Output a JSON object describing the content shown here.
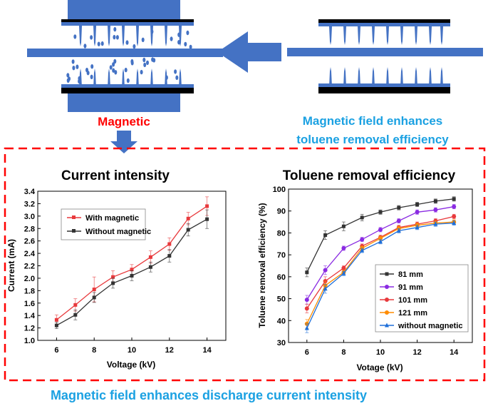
{
  "diagram": {
    "magnetic_label": "Magnetic",
    "caption_top_line1": "Magnetic field enhances",
    "caption_top_line2": "toluene removal efficiency",
    "caption_bottom": "Magnetic field enhances discharge current intensity",
    "colors": {
      "electrode_blue": "#4472C4",
      "magnetic_red": "#FF0000",
      "caption_cyan": "#1BA1E2",
      "frame_red": "#FF0000"
    }
  },
  "chart_data": [
    {
      "type": "line",
      "title": "Current intensity",
      "xlabel": "Voltage (kV)",
      "ylabel": "Current (mA)",
      "xlim": [
        5,
        15
      ],
      "ylim": [
        1.0,
        3.4
      ],
      "xticks": [
        "6",
        "8",
        "10",
        "12",
        "14"
      ],
      "yticks": [
        "1.0",
        "1.2",
        "1.4",
        "1.6",
        "1.8",
        "2.0",
        "2.2",
        "2.4",
        "2.6",
        "2.8",
        "3.0",
        "3.2",
        "3.4"
      ],
      "x": [
        6,
        7,
        8,
        9,
        10,
        11,
        12,
        13,
        14
      ],
      "legend_position": "top-left",
      "series": [
        {
          "name": "With magnetic",
          "color": "#E8393C",
          "marker": "square",
          "values": [
            1.33,
            1.57,
            1.82,
            2.02,
            2.14,
            2.34,
            2.55,
            2.96,
            3.16
          ],
          "errors": [
            0.08,
            0.1,
            0.2,
            0.1,
            0.08,
            0.1,
            0.1,
            0.1,
            0.15
          ]
        },
        {
          "name": "Without magnetic",
          "color": "#333333",
          "marker": "square",
          "values": [
            1.24,
            1.41,
            1.69,
            1.92,
            2.04,
            2.18,
            2.36,
            2.78,
            2.95
          ],
          "errors": [
            0.05,
            0.08,
            0.08,
            0.08,
            0.08,
            0.08,
            0.1,
            0.1,
            0.15
          ]
        }
      ]
    },
    {
      "type": "line",
      "title": "Toluene removal efficiency",
      "xlabel": "Votage (kV)",
      "ylabel": "Toluene removal efficiency (%)",
      "xlim": [
        5,
        15
      ],
      "ylim": [
        30,
        100
      ],
      "xticks": [
        "6",
        "8",
        "10",
        "12",
        "14"
      ],
      "yticks": [
        "30",
        "40",
        "50",
        "60",
        "70",
        "80",
        "90",
        "100"
      ],
      "x": [
        6,
        7,
        8,
        9,
        10,
        11,
        12,
        13,
        14
      ],
      "legend_position": "bottom-right",
      "series": [
        {
          "name": "81 mm",
          "color": "#333333",
          "marker": "square",
          "values": [
            62,
            79,
            83,
            87,
            89.5,
            91.5,
            93,
            94.5,
            95.5
          ],
          "errors": [
            2,
            2,
            2,
            1.5,
            1,
            1,
            1,
            1,
            1
          ]
        },
        {
          "name": "91 mm",
          "color": "#8A2BE2",
          "marker": "circle",
          "values": [
            49.5,
            63,
            73,
            77,
            81.5,
            85.5,
            89.5,
            90.5,
            92
          ],
          "errors": [
            2,
            2,
            1,
            1,
            1,
            1,
            1,
            1,
            1
          ]
        },
        {
          "name": "101 mm",
          "color": "#E8393C",
          "marker": "circle",
          "values": [
            45.5,
            58,
            64,
            74,
            78,
            82.5,
            84,
            85.5,
            87.5
          ],
          "errors": [
            2,
            2,
            1,
            1,
            1,
            1,
            1,
            1,
            1
          ]
        },
        {
          "name": "121 mm",
          "color": "#FF8C00",
          "marker": "circle",
          "values": [
            38.5,
            56,
            62,
            73,
            77.5,
            82,
            83.5,
            84.5,
            85
          ],
          "errors": [
            2,
            2,
            1,
            1,
            1,
            1,
            1,
            1,
            1
          ]
        },
        {
          "name": "without magnetic",
          "color": "#1E6FD9",
          "marker": "triangle",
          "values": [
            36.5,
            54.5,
            61.5,
            72,
            76,
            81,
            82.5,
            84,
            84.5
          ],
          "errors": [
            2,
            2,
            1,
            1,
            1,
            1,
            1,
            1,
            1
          ]
        }
      ]
    }
  ]
}
